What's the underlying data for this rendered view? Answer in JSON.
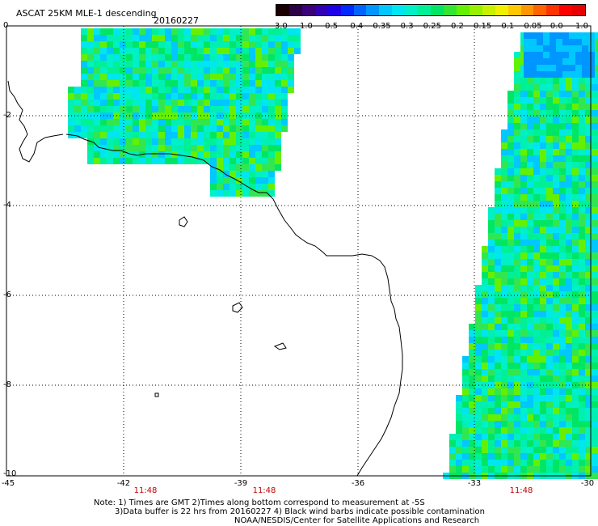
{
  "header": {
    "title": "ASCAT 25KM MLE-1 descending",
    "date": "20160227"
  },
  "colorbar": {
    "labels": [
      "-3.0",
      "-1.0",
      "-0.5",
      "-0.4",
      "-0.35",
      "-0.3",
      "-0.25",
      "-0.2",
      "-0.15",
      "-0.1",
      "-0.05",
      "0.0",
      "1.0"
    ],
    "colors": [
      "#1a0000",
      "#2c0044",
      "#3c0078",
      "#3200b4",
      "#1e00e6",
      "#0028ff",
      "#0064ff",
      "#0096ff",
      "#00c8ff",
      "#00e6f0",
      "#00f0c8",
      "#00f096",
      "#00e664",
      "#32e632",
      "#64f000",
      "#96f000",
      "#c8f000",
      "#f0f000",
      "#ffc800",
      "#ff9600",
      "#ff6400",
      "#ff3200",
      "#ff0000",
      "#e60000"
    ]
  },
  "axes": {
    "lat_labels": [
      "0",
      "-2",
      "-4",
      "-6",
      "-8",
      "-10"
    ],
    "lon_labels": [
      "-45",
      "-42",
      "-39",
      "-36",
      "-33",
      "-30"
    ],
    "time_labels": [
      "11:48",
      "11:48",
      "11:48"
    ]
  },
  "notes": {
    "line1": "Note: 1) Times are GMT 2)Times along bottom correspond to measurement at -5S",
    "line2": "3)Data buffer is 22 hrs from 20160227 4) Black wind barbs indicate possible contamination",
    "line3": "NOAA/NESDIS/Center for Satellite Applications and Research"
  },
  "swaths": {
    "west_color": "#00f0b4",
    "east_color": "#32e650",
    "accent_blue": "#00c8ff",
    "accent_green": "#64f000"
  }
}
